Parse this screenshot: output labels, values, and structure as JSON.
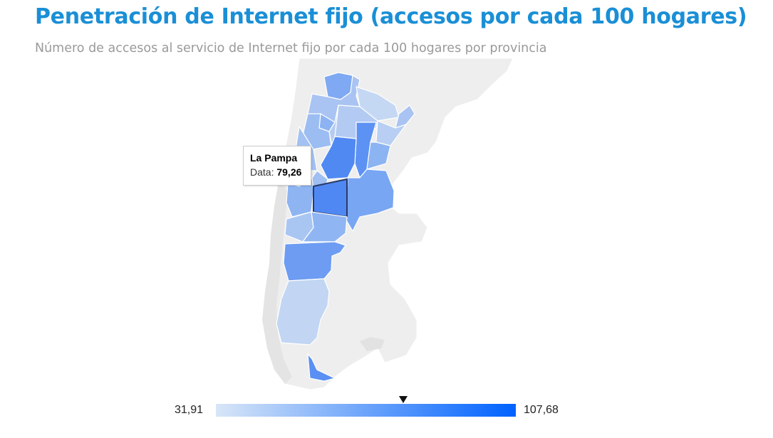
{
  "header": {
    "title": "Penetración de Internet fijo (accesos por cada 100 hogares)",
    "subtitle": "Número de accesos al servicio de Internet fijo por cada 100 hogares por provincia"
  },
  "tooltip": {
    "region": "La Pampa",
    "label": "Data: ",
    "value": "79,26"
  },
  "legend": {
    "min_label": "31,91",
    "max_label": "107,68",
    "min_value": 31.91,
    "max_value": 107.68,
    "marker_value": 79.26,
    "color_low": "#d8e6f7",
    "color_high": "#0062ff"
  },
  "colors": {
    "title": "#1a8fd6",
    "subtitle": "#9a9a9a",
    "land": "#eeeeee",
    "borders": "#ffffff"
  }
}
